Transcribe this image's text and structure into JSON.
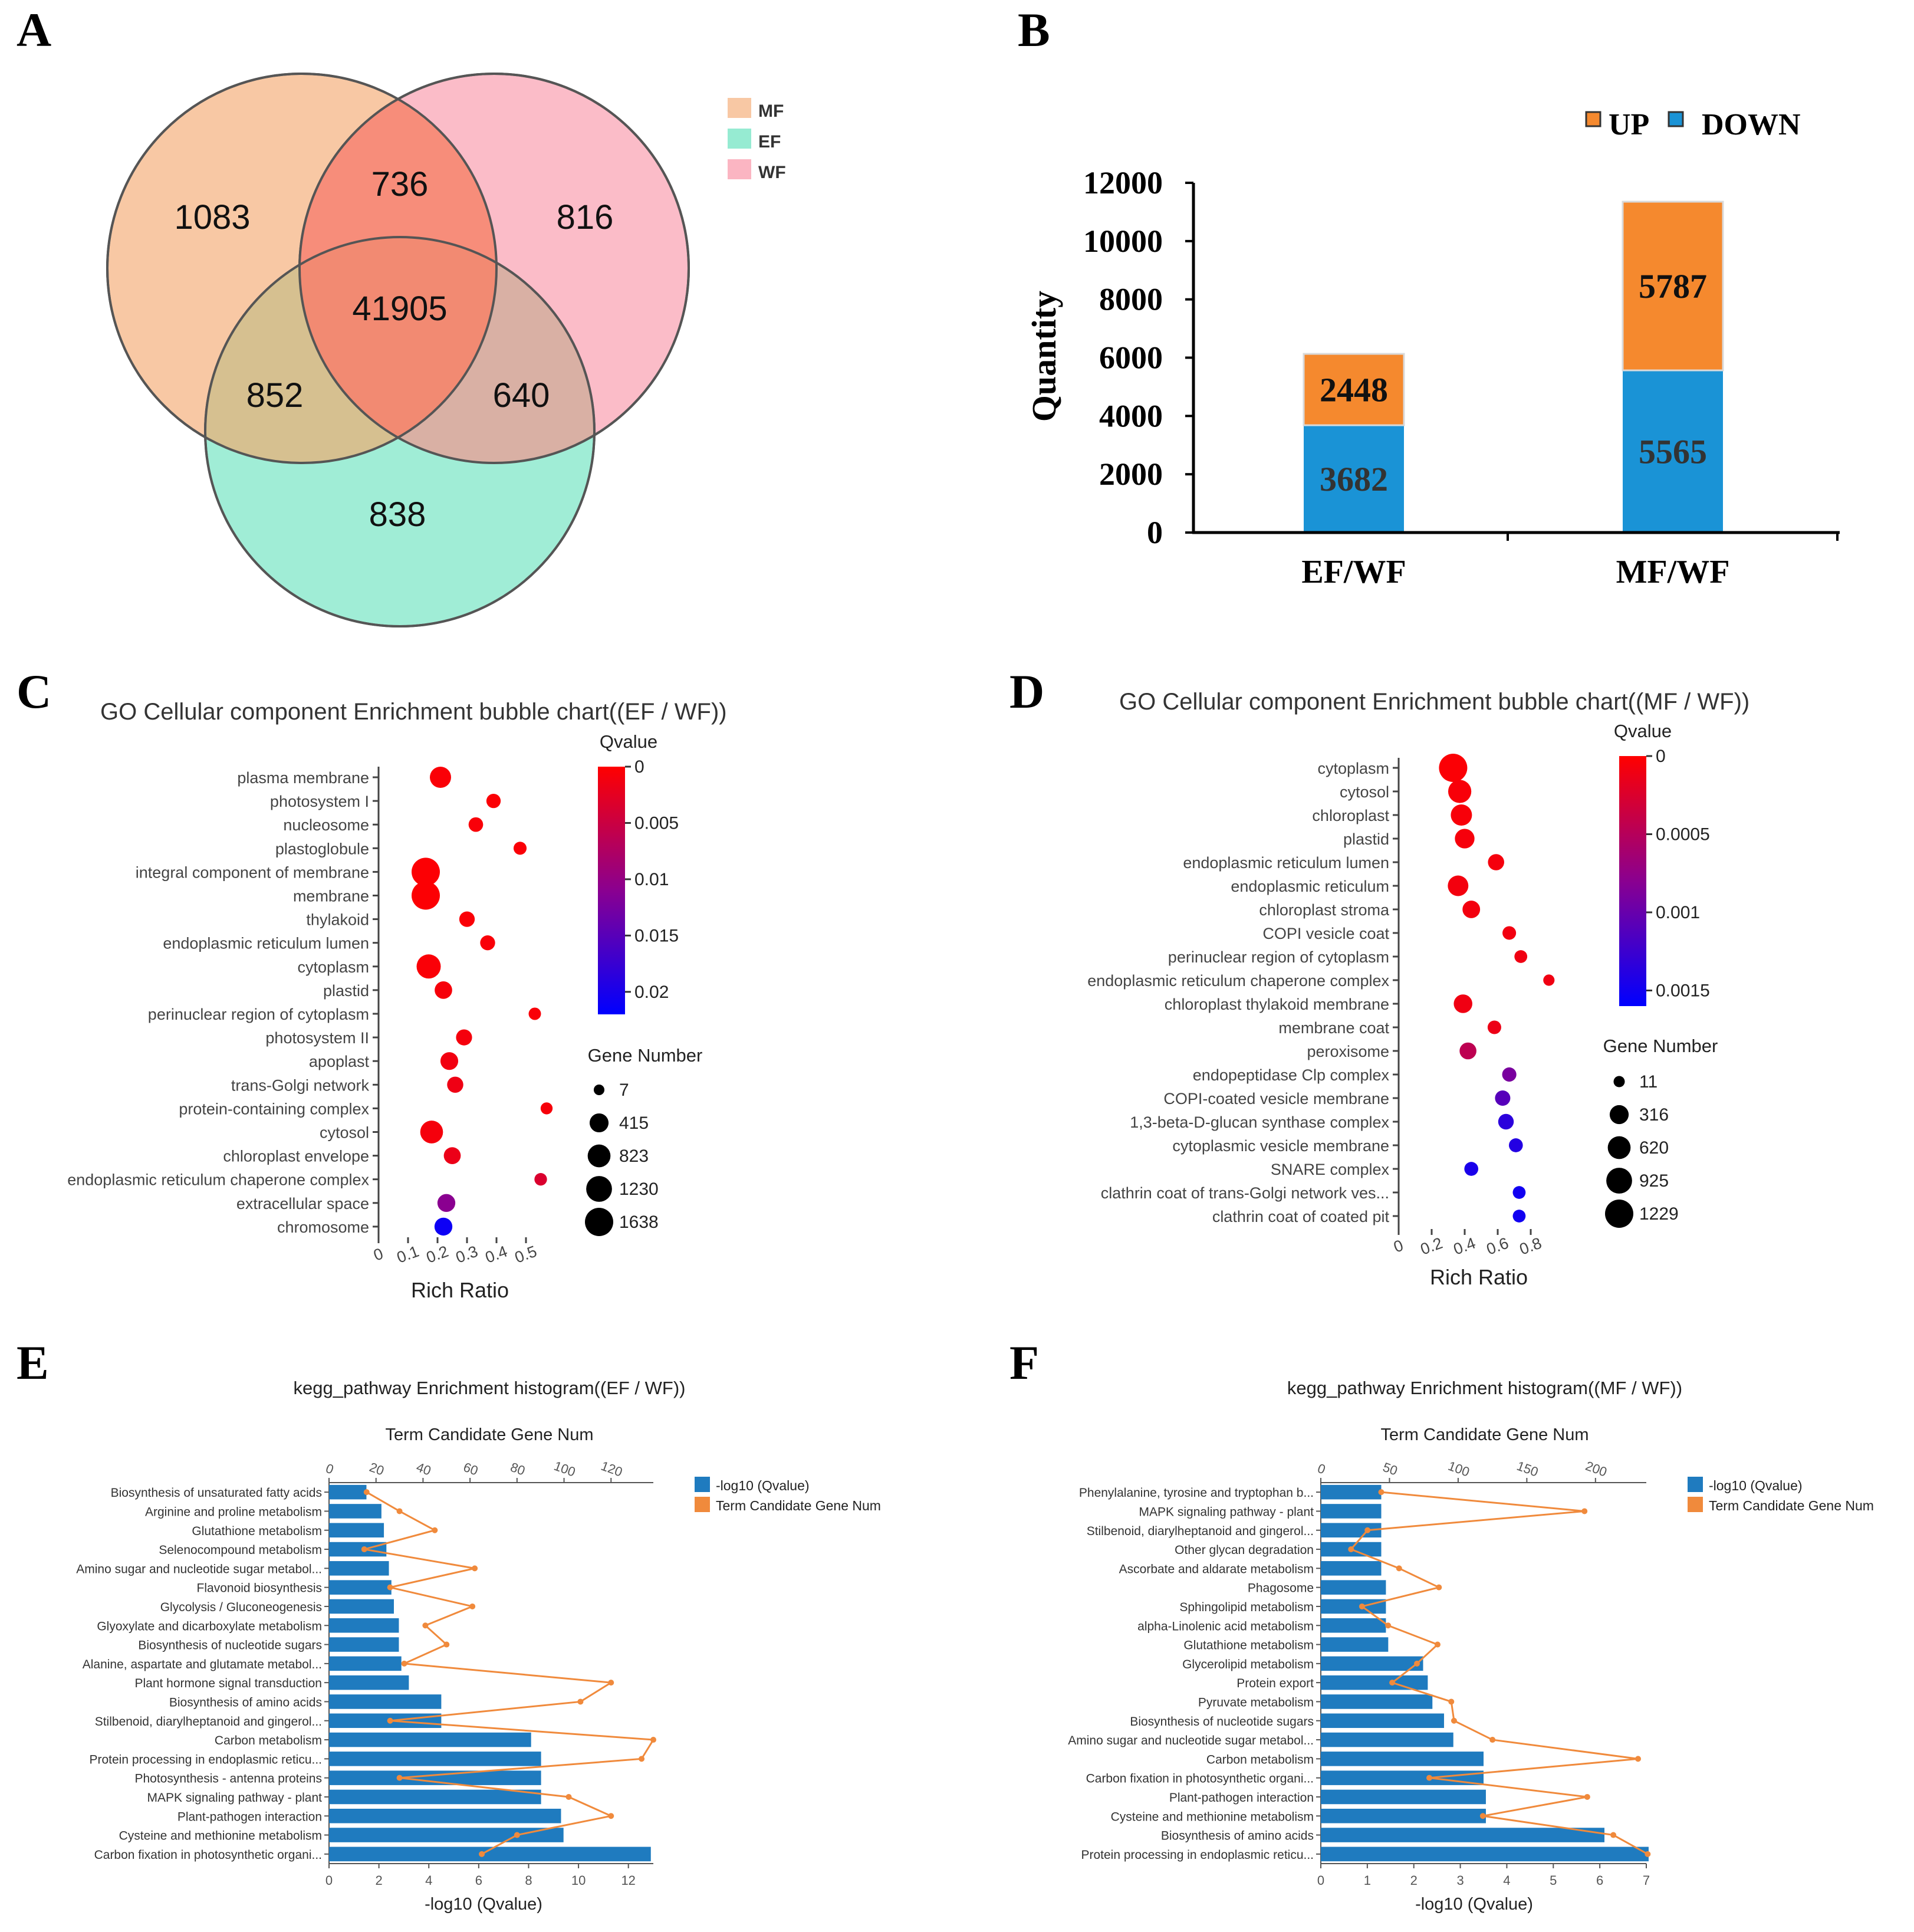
{
  "colors": {
    "mf": "#f8c8a4",
    "ef": "#96ebd2",
    "wf": "#fbb5c2",
    "up": "#f5892e",
    "down": "#1a93d6",
    "bar": "#1f7bbf",
    "line": "#f08a3c",
    "qhigh": "#ff0000",
    "qmid": "#8a0090",
    "qlow": "#0000ff"
  },
  "panels": {
    "A": "A",
    "B": "B",
    "C": "C",
    "D": "D",
    "E": "E",
    "F": "F"
  },
  "chart_data": [
    {
      "id": "A",
      "type": "venn",
      "sets": [
        "MF",
        "EF",
        "WF"
      ],
      "regions": {
        "MF_only": "1083",
        "MF_WF": "736",
        "WF_only": "816",
        "all": "41905",
        "MF_EF": "852",
        "EF_WF": "640",
        "EF_only": "838"
      },
      "legend": [
        "MF",
        "EF",
        "WF"
      ]
    },
    {
      "id": "B",
      "type": "bar",
      "stacked": true,
      "categories": [
        "EF/WF",
        "MF/WF"
      ],
      "series": [
        {
          "name": "DOWN",
          "values": [
            3682,
            5565
          ]
        },
        {
          "name": "UP",
          "values": [
            2448,
            5787
          ]
        }
      ],
      "labels": {
        "down": [
          "3682",
          "5565"
        ],
        "up": [
          "2448",
          "5787"
        ]
      },
      "legend": [
        "UP",
        "DOWN"
      ],
      "ylabel": "Quantity",
      "ylim": [
        0,
        12000
      ],
      "yticks": [
        "0",
        "2000",
        "4000",
        "6000",
        "8000",
        "10000",
        "12000"
      ]
    },
    {
      "id": "C",
      "type": "scatter",
      "title": "GO Cellular component Enrichment bubble chart((EF / WF))",
      "xlabel": "Rich Ratio",
      "xlim": [
        0,
        0.6
      ],
      "xticks": [
        "0",
        "0.1",
        "0.2",
        "0.3",
        "0.4",
        "0.5"
      ],
      "colorbar_title": "Qvalue",
      "qmax": 0.022,
      "colorbar_ticks": [
        "0",
        "0.005",
        "0.01",
        "0.015",
        "0.02"
      ],
      "size_title": "Gene Number",
      "size_legend": [
        "7",
        "415",
        "823",
        "1230",
        "1638"
      ],
      "terms": [
        "plasma membrane",
        "photosystem I",
        "nucleosome",
        "plastoglobule",
        "integral component of membrane",
        "membrane",
        "thylakoid",
        "endoplasmic reticulum lumen",
        "cytoplasm",
        "plastid",
        "perinuclear region of cytoplasm",
        "photosystem II",
        "apoplast",
        "trans-Golgi network",
        "protein-containing complex",
        "cytosol",
        "chloroplast envelope",
        "endoplasmic reticulum chaperone complex",
        "extracellular space",
        "chromosome"
      ],
      "rich_ratio": [
        0.21,
        0.39,
        0.33,
        0.48,
        0.16,
        0.16,
        0.3,
        0.37,
        0.17,
        0.22,
        0.53,
        0.29,
        0.24,
        0.26,
        0.57,
        0.18,
        0.25,
        0.55,
        0.23,
        0.22
      ],
      "qvalue": [
        0.0005,
        0.0004,
        0.0006,
        0.0005,
        0.0003,
        0.0003,
        0.0005,
        0.0006,
        0.0005,
        0.0008,
        0.0006,
        0.0009,
        0.0012,
        0.0015,
        0.0008,
        0.0009,
        0.0018,
        0.0035,
        0.011,
        0.021
      ],
      "gene_number": [
        640,
        110,
        120,
        60,
        1638,
        1638,
        170,
        140,
        1000,
        300,
        40,
        200,
        320,
        210,
        30,
        820,
        260,
        45,
        330,
        330
      ]
    },
    {
      "id": "D",
      "type": "scatter",
      "title": "GO Cellular component Enrichment bubble chart((MF / WF))",
      "xlabel": "Rich Ratio",
      "xlim": [
        0,
        1.0
      ],
      "xticks": [
        "0",
        "0.2",
        "0.4",
        "0.6",
        "0.8"
      ],
      "colorbar_title": "Qvalue",
      "qmax": 0.0016,
      "colorbar_ticks": [
        "0",
        "0.0005",
        "0.001",
        "0.0015"
      ],
      "size_title": "Gene Number",
      "size_legend": [
        "11",
        "316",
        "620",
        "925",
        "1229"
      ],
      "terms": [
        "cytoplasm",
        "cytosol",
        "chloroplast",
        "plastid",
        "endoplasmic reticulum lumen",
        "endoplasmic reticulum",
        "chloroplast stroma",
        "COPI vesicle coat",
        "perinuclear region of cytoplasm",
        "endoplasmic reticulum chaperone complex",
        "chloroplast thylakoid membrane",
        "membrane coat",
        "peroxisome",
        "endopeptidase Clp complex",
        "COPI-coated vesicle membrane",
        "1,3-beta-D-glucan synthase complex",
        "cytoplasmic vesicle membrane",
        "SNARE complex",
        "clathrin coat of trans-Golgi network ves...",
        "clathrin coat of coated pit"
      ],
      "rich_ratio": [
        0.33,
        0.37,
        0.38,
        0.4,
        0.59,
        0.36,
        0.44,
        0.67,
        0.74,
        0.91,
        0.39,
        0.58,
        0.42,
        0.67,
        0.63,
        0.65,
        0.71,
        0.44,
        0.73,
        0.73
      ],
      "qvalue": [
        3e-05,
        5e-05,
        5e-05,
        6e-05,
        7e-05,
        8e-05,
        8e-05,
        9e-05,
        0.0001,
        0.0001,
        0.0001,
        0.00012,
        0.00045,
        0.0009,
        0.0011,
        0.00135,
        0.0014,
        0.00145,
        0.0015,
        0.0015
      ],
      "gene_number": [
        1229,
        650,
        480,
        360,
        160,
        430,
        230,
        60,
        40,
        12,
        290,
        60,
        190,
        80,
        120,
        130,
        70,
        70,
        40,
        40
      ]
    },
    {
      "id": "E",
      "type": "bar",
      "orientation": "horizontal",
      "title": "kegg_pathway Enrichment histogram((EF / WF))",
      "top_axis_label": "Term Candidate Gene Num",
      "top_ticks": [
        "0",
        "20",
        "40",
        "60",
        "80",
        "100",
        "120"
      ],
      "top_lim": [
        0,
        138
      ],
      "xlabel": "-log10 (Qvalue)",
      "xlim": [
        0,
        13
      ],
      "xticks": [
        "0",
        "2",
        "4",
        "6",
        "8",
        "10",
        "12"
      ],
      "legend": [
        "-log10 (Qvalue)",
        "Term Candidate Gene Num"
      ],
      "categories": [
        "Biosynthesis of unsaturated fatty acids",
        "Arginine and proline metabolism",
        "Glutathione metabolism",
        "Selenocompound metabolism",
        "Amino sugar and nucleotide sugar metabol...",
        "Flavonoid biosynthesis",
        "Glycolysis / Gluconeogenesis",
        "Glyoxylate and dicarboxylate metabolism",
        "Biosynthesis of nucleotide sugars",
        "Alanine, aspartate and glutamate metabol...",
        "Plant hormone signal transduction",
        "Biosynthesis of amino acids",
        "Stilbenoid, diarylheptanoid and gingerol...",
        "Carbon metabolism",
        "Protein processing in endoplasmic reticu...",
        "Photosynthesis - antenna proteins",
        "MAPK signaling pathway - plant",
        "Plant-pathogen interaction",
        "Cysteine and methionine metabolism",
        "Carbon fixation in photosynthetic organi..."
      ],
      "neg_log10_q": [
        1.5,
        2.1,
        2.2,
        2.3,
        2.4,
        2.5,
        2.6,
        2.8,
        2.8,
        2.9,
        3.2,
        4.5,
        4.5,
        8.1,
        8.5,
        8.5,
        8.5,
        9.3,
        9.4,
        12.9
      ],
      "gene_num": [
        16,
        30,
        45,
        15,
        62,
        26,
        61,
        41,
        50,
        32,
        120,
        107,
        26,
        138,
        133,
        30,
        102,
        120,
        80,
        65
      ]
    },
    {
      "id": "F",
      "type": "bar",
      "orientation": "horizontal",
      "title": "kegg_pathway Enrichment histogram((MF / WF))",
      "top_axis_label": "Term Candidate Gene Num",
      "top_ticks": [
        "0",
        "50",
        "100",
        "150",
        "200"
      ],
      "top_lim": [
        0,
        237
      ],
      "xlabel": "-log10 (Qvalue)",
      "xlim": [
        0,
        7
      ],
      "xticks": [
        "0",
        "1",
        "2",
        "3",
        "4",
        "5",
        "6",
        "7"
      ],
      "legend": [
        "-log10 (Qvalue)",
        "Term Candidate Gene Num"
      ],
      "categories": [
        "Phenylalanine, tyrosine and tryptophan b...",
        "MAPK signaling pathway - plant",
        "Stilbenoid, diarylheptanoid and gingerol...",
        "Other glycan degradation",
        "Ascorbate and aldarate metabolism",
        "Phagosome",
        "Sphingolipid metabolism",
        "alpha-Linolenic acid metabolism",
        "Glutathione metabolism",
        "Glycerolipid metabolism",
        "Protein export",
        "Pyruvate metabolism",
        "Biosynthesis of nucleotide sugars",
        "Amino sugar and nucleotide sugar metabol...",
        "Carbon metabolism",
        "Carbon fixation in photosynthetic organi...",
        "Plant-pathogen interaction",
        "Cysteine and methionine metabolism",
        "Biosynthesis of amino acids",
        "Protein processing in endoplasmic reticu..."
      ],
      "neg_log10_q": [
        1.3,
        1.3,
        1.3,
        1.3,
        1.3,
        1.4,
        1.4,
        1.4,
        1.45,
        2.2,
        2.3,
        2.4,
        2.65,
        2.85,
        3.5,
        3.5,
        3.55,
        3.55,
        6.1,
        7.05
      ],
      "gene_num": [
        44,
        192,
        34,
        22,
        57,
        86,
        30,
        49,
        85,
        70,
        52,
        95,
        97,
        125,
        231,
        79,
        194,
        118,
        213,
        238
      ]
    }
  ]
}
